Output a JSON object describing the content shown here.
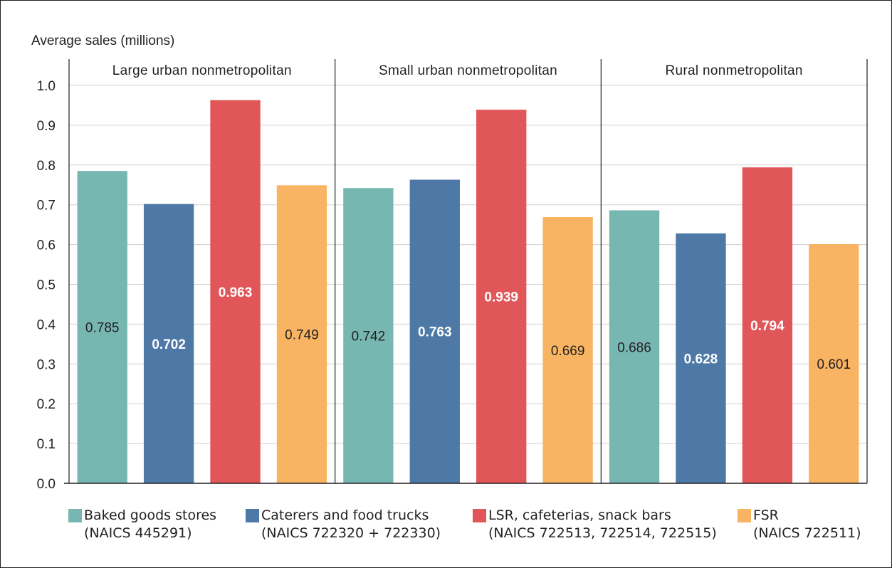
{
  "chart_data": {
    "type": "bar",
    "ylabel": "Average sales (millions)",
    "ylim": [
      0,
      1.0
    ],
    "yticks": [
      "0.0",
      "0.1",
      "0.2",
      "0.3",
      "0.4",
      "0.5",
      "0.6",
      "0.7",
      "0.8",
      "0.9",
      "1.0"
    ],
    "grid": true,
    "legend_position": "bottom",
    "groups": [
      {
        "name": "Large urban nonmetropolitan",
        "values": [
          0.785,
          0.702,
          0.963,
          0.749
        ],
        "labels": [
          "0.785",
          "0.702",
          "0.963",
          "0.749"
        ]
      },
      {
        "name": "Small urban nonmetropolitan",
        "values": [
          0.742,
          0.763,
          0.939,
          0.669
        ],
        "labels": [
          "0.742",
          "0.763",
          "0.939",
          "0.669"
        ]
      },
      {
        "name": "Rural nonmetropolitan",
        "values": [
          0.686,
          0.628,
          0.794,
          0.601
        ],
        "labels": [
          "0.686",
          "0.628",
          "0.794",
          "0.601"
        ]
      }
    ],
    "series": [
      {
        "name": "Baked goods stores",
        "detail": "(NAICS 445291)",
        "color": "#76b7b2",
        "label_color": "#231f20"
      },
      {
        "name": "Caterers and food trucks",
        "detail": "(NAICS 722320 + 722330)",
        "color": "#4e79a7",
        "label_color": "#ffffff"
      },
      {
        "name": "LSR, cafeterias, snack bars",
        "detail": "(NAICS 722513, 722514, 722515)",
        "color": "#e15759",
        "label_color": "#ffffff"
      },
      {
        "name": "FSR",
        "detail": "(NAICS 722511)",
        "color": "#f8b462",
        "label_color": "#231f20"
      }
    ]
  }
}
